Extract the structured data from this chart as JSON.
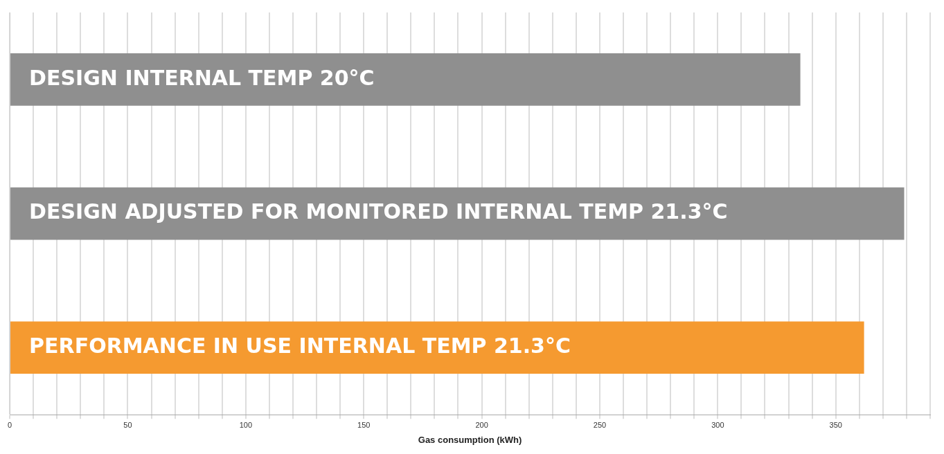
{
  "chart_data": {
    "type": "bar",
    "orientation": "horizontal",
    "xlabel": "Gas consumption (kWh)",
    "categories": [
      "DESIGN INTERNAL TEMP 20°C",
      "DESIGN ADJUSTED FOR MONITORED INTERNAL TEMP 21.3°C",
      "PERFORMANCE IN USE INTERNAL TEMP 21.3°C"
    ],
    "values": [
      335,
      379,
      362
    ],
    "colors": [
      "#8f8f8f",
      "#8f8f8f",
      "#f59a30"
    ],
    "xlim": [
      0,
      390
    ],
    "xticks": [
      0,
      {
        "value": 10,
        "label": null
      },
      {
        "value": 20,
        "label": null
      },
      {
        "value": 30,
        "label": null
      },
      {
        "value": 40,
        "label": null
      },
      50,
      {
        "value": 60,
        "label": null
      },
      {
        "value": 70,
        "label": null
      },
      {
        "value": 80,
        "label": null
      },
      {
        "value": 90,
        "label": null
      },
      100,
      {
        "value": 110,
        "label": null
      },
      {
        "value": 120,
        "label": null
      },
      {
        "value": 130,
        "label": null
      },
      {
        "value": 140,
        "label": null
      },
      150,
      {
        "value": 160,
        "label": null
      },
      {
        "value": 170,
        "label": null
      },
      {
        "value": 180,
        "label": null
      },
      {
        "value": 190,
        "label": null
      },
      200,
      {
        "value": 210,
        "label": null
      },
      {
        "value": 220,
        "label": null
      },
      {
        "value": 230,
        "label": null
      },
      {
        "value": 240,
        "label": null
      },
      250,
      {
        "value": 260,
        "label": null
      },
      {
        "value": 270,
        "label": null
      },
      {
        "value": 280,
        "label": null
      },
      {
        "value": 290,
        "label": null
      },
      300,
      {
        "value": 310,
        "label": null
      },
      {
        "value": 320,
        "label": null
      },
      {
        "value": 330,
        "label": null
      },
      {
        "value": 340,
        "label": null
      },
      350,
      {
        "value": 360,
        "label": null
      },
      {
        "value": 370,
        "label": null
      },
      {
        "value": 380,
        "label": null
      },
      {
        "value": 390,
        "label": null
      }
    ],
    "grid": "x",
    "tick_labels": "x",
    "legend": false
  }
}
